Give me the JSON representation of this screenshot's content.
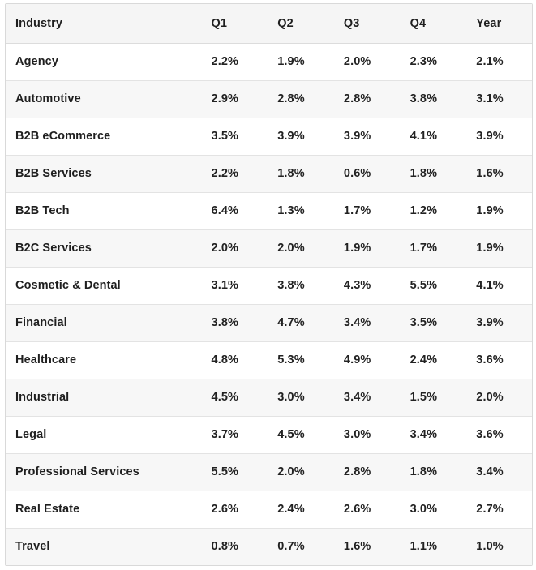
{
  "table": {
    "headers": [
      "Industry",
      "Q1",
      "Q2",
      "Q3",
      "Q4",
      "Year"
    ],
    "rows": [
      {
        "industry": "Agency",
        "q1": "2.2%",
        "q2": "1.9%",
        "q3": "2.0%",
        "q4": "2.3%",
        "year": "2.1%"
      },
      {
        "industry": "Automotive",
        "q1": "2.9%",
        "q2": "2.8%",
        "q3": "2.8%",
        "q4": "3.8%",
        "year": "3.1%"
      },
      {
        "industry": "B2B eCommerce",
        "q1": "3.5%",
        "q2": "3.9%",
        "q3": "3.9%",
        "q4": "4.1%",
        "year": "3.9%"
      },
      {
        "industry": "B2B Services",
        "q1": "2.2%",
        "q2": "1.8%",
        "q3": "0.6%",
        "q4": "1.8%",
        "year": "1.6%"
      },
      {
        "industry": "B2B Tech",
        "q1": "6.4%",
        "q2": "1.3%",
        "q3": "1.7%",
        "q4": "1.2%",
        "year": "1.9%"
      },
      {
        "industry": "B2C Services",
        "q1": "2.0%",
        "q2": "2.0%",
        "q3": "1.9%",
        "q4": "1.7%",
        "year": "1.9%"
      },
      {
        "industry": "Cosmetic & Dental",
        "q1": "3.1%",
        "q2": "3.8%",
        "q3": "4.3%",
        "q4": "5.5%",
        "year": "4.1%"
      },
      {
        "industry": "Financial",
        "q1": "3.8%",
        "q2": "4.7%",
        "q3": "3.4%",
        "q4": "3.5%",
        "year": "3.9%"
      },
      {
        "industry": "Healthcare",
        "q1": "4.8%",
        "q2": "5.3%",
        "q3": "4.9%",
        "q4": "2.4%",
        "year": "3.6%"
      },
      {
        "industry": "Industrial",
        "q1": "4.5%",
        "q2": "3.0%",
        "q3": "3.4%",
        "q4": "1.5%",
        "year": "2.0%"
      },
      {
        "industry": "Legal",
        "q1": "3.7%",
        "q2": "4.5%",
        "q3": "3.0%",
        "q4": "3.4%",
        "year": "3.6%"
      },
      {
        "industry": "Professional Services",
        "q1": "5.5%",
        "q2": "2.0%",
        "q3": "2.8%",
        "q4": "1.8%",
        "year": "3.4%"
      },
      {
        "industry": "Real Estate",
        "q1": "2.6%",
        "q2": "2.4%",
        "q3": "2.6%",
        "q4": "3.0%",
        "year": "2.7%"
      },
      {
        "industry": "Travel",
        "q1": "0.8%",
        "q2": "0.7%",
        "q3": "1.6%",
        "q4": "1.1%",
        "year": "1.0%"
      }
    ]
  },
  "colors": {
    "header_bg": "#f5f5f5",
    "stripe_bg": "#f7f7f7",
    "border": "#d9d9d9",
    "text": "#1f1f1f"
  }
}
